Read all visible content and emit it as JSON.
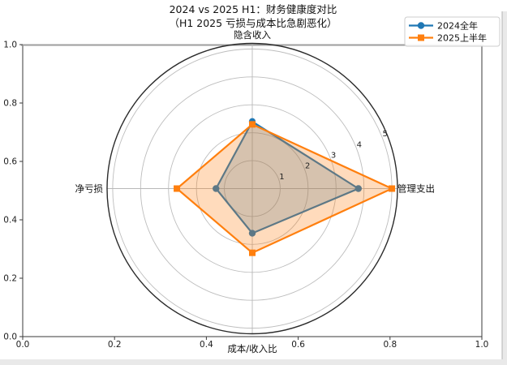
{
  "title": {
    "line1": "2024 vs 2025 H1：财务健康度对比",
    "line2": "（H1 2025 亏损与成本比急剧恶化）"
  },
  "legend": {
    "items": [
      {
        "label": "2024全年",
        "color": "#1f77b4",
        "marker": "circle"
      },
      {
        "label": "2025上半年",
        "color": "#ff7f0e",
        "marker": "square"
      }
    ]
  },
  "outer_axes": {
    "x_tick_labels": [
      "0.0",
      "0.2",
      "0.4",
      "0.6",
      "0.8",
      "1.0"
    ],
    "y_tick_labels": [
      "0.0",
      "0.2",
      "0.4",
      "0.6",
      "0.8",
      "1.0"
    ]
  },
  "chart_data": {
    "type": "radar",
    "title": "2024 vs 2025 H1：财务健康度对比",
    "subtitle": "（H1 2025 亏损与成本比急剧恶化）",
    "categories": [
      "隐含收入",
      "管理支出",
      "成本/收入比",
      "净亏损"
    ],
    "series": [
      {
        "name": "2024全年",
        "color": "#1f77b4",
        "marker": "circle",
        "fill_opacity": 0.25,
        "values": [
          2.4,
          3.8,
          1.6,
          1.3
        ]
      },
      {
        "name": "2025上半年",
        "color": "#ff7f0e",
        "marker": "square",
        "fill_opacity": 0.28,
        "values": [
          2.3,
          5.0,
          2.3,
          2.7
        ]
      }
    ],
    "r_ticks": [
      1,
      2,
      3,
      4,
      5
    ],
    "r_max": 5.2,
    "r_label_angle_deg": 22.5,
    "grid": true,
    "grid_color": "#bdbdbd",
    "legend_position": "top-right"
  }
}
